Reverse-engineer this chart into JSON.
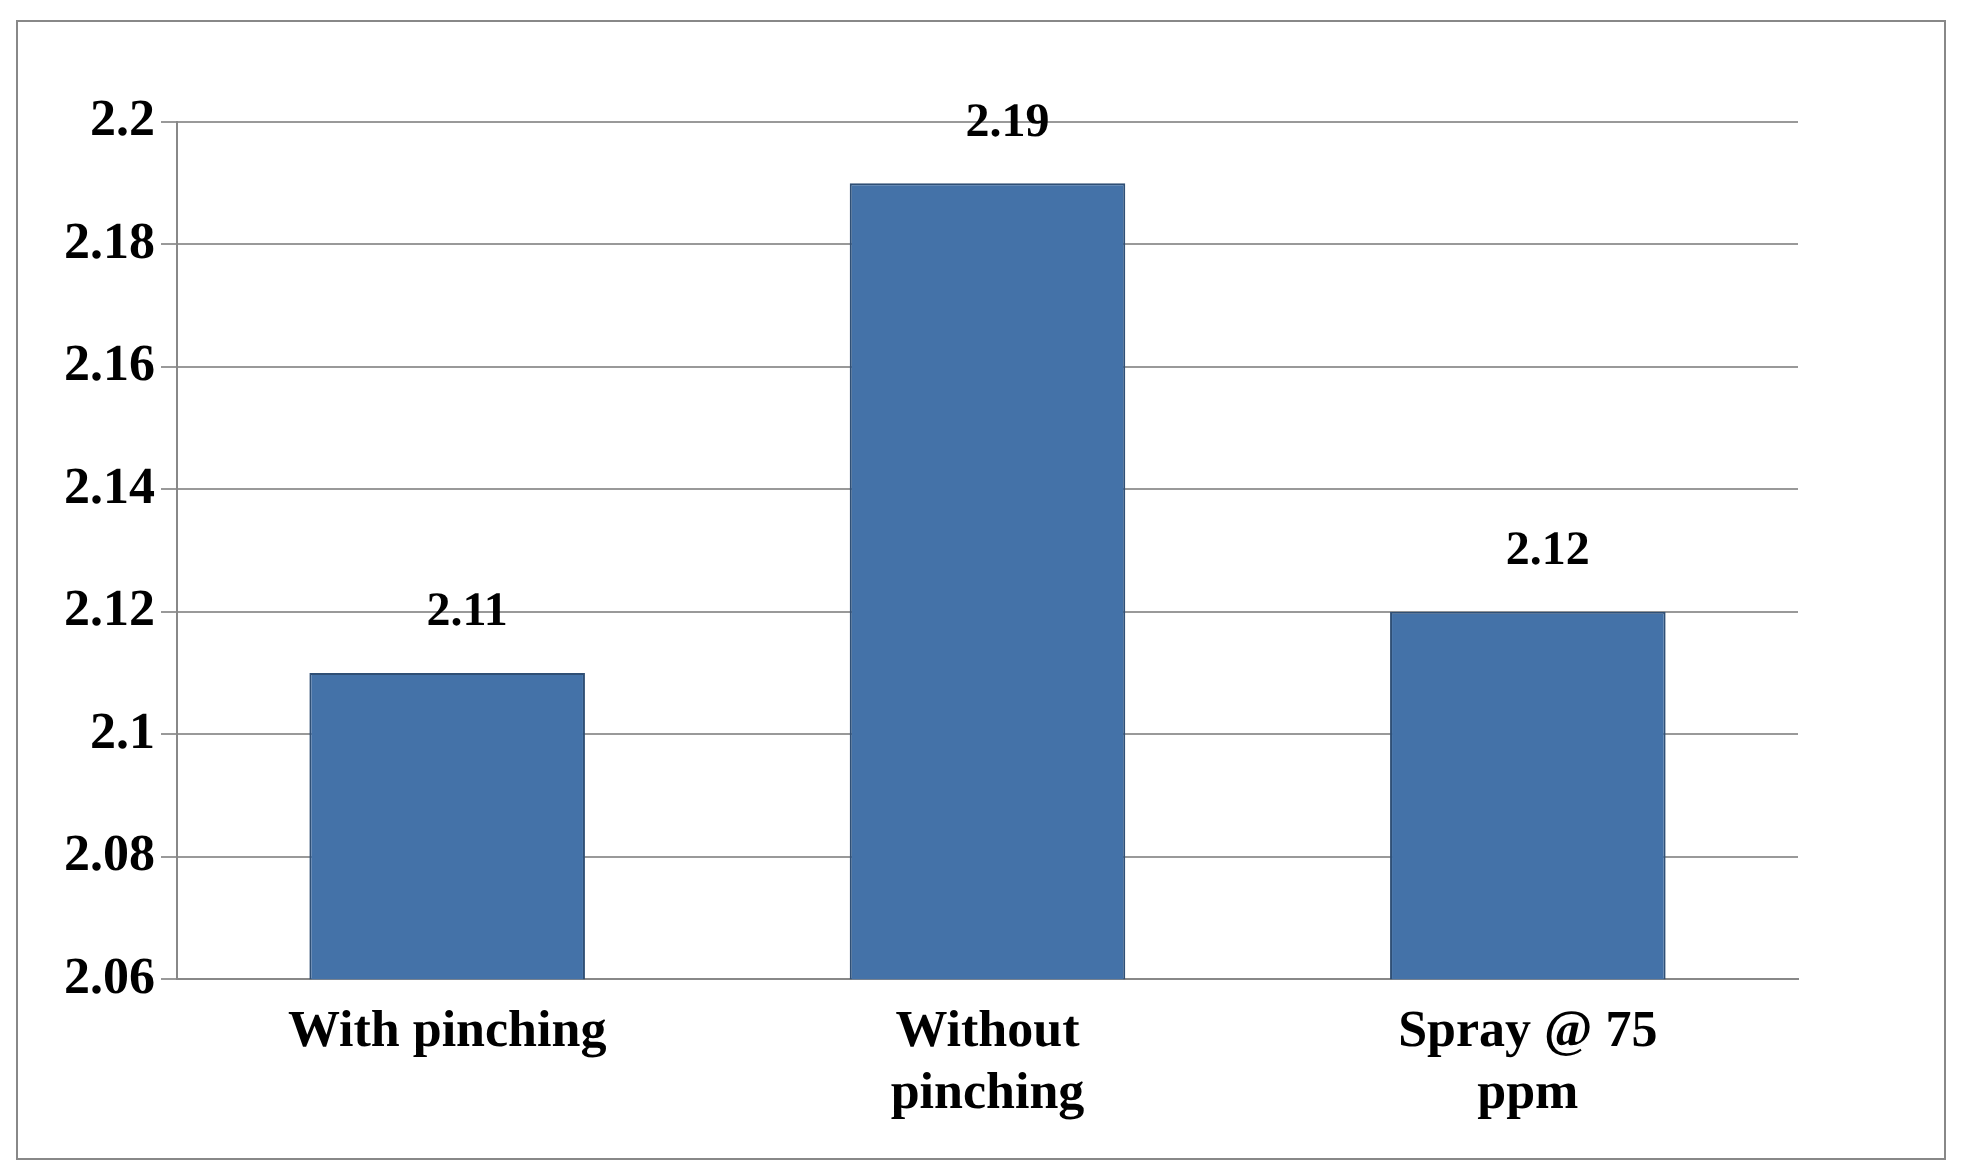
{
  "chart_data": {
    "type": "bar",
    "categories": [
      "With pinching",
      "Without pinching",
      "Spray @ 75 ppm"
    ],
    "values": [
      2.11,
      2.19,
      2.12
    ],
    "color": "#4472a8",
    "ylim": [
      2.06,
      2.2
    ],
    "yticks": [
      2.06,
      2.08,
      2.1,
      2.12,
      2.14,
      2.16,
      2.18,
      2.2
    ],
    "grid": "y",
    "data_labels": true,
    "legend": false
  }
}
